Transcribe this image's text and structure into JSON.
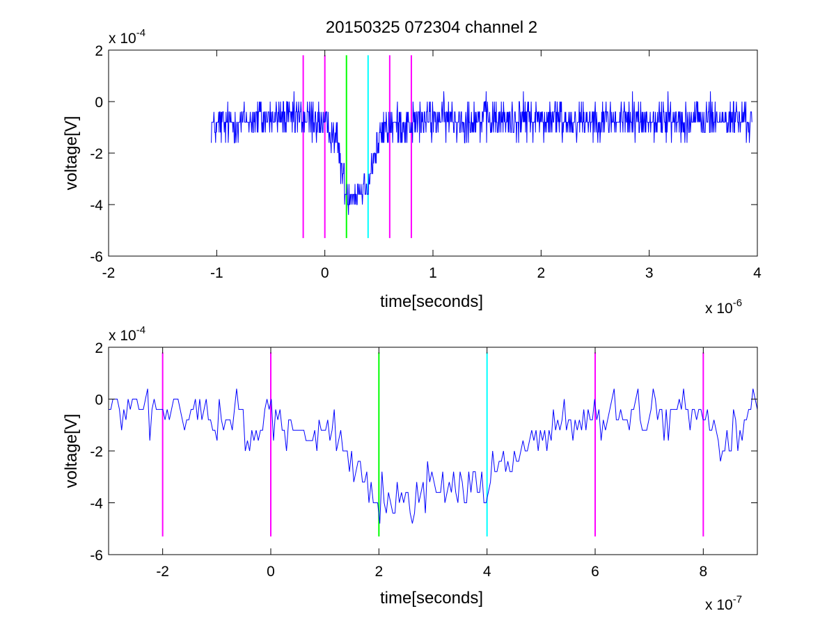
{
  "chart_data": [
    {
      "type": "line",
      "title": "20150325 072304 channel 2",
      "xlabel": "time[seconds]",
      "ylabel": "voltage[V]",
      "x_exponent_label": "x 10",
      "x_exponent": "-6",
      "y_exponent_label": "x 10",
      "y_exponent": "-4",
      "xlim": [
        -2e-06,
        4e-06
      ],
      "ylim": [
        -0.0006,
        0.0002
      ],
      "xticks": [
        -2e-06,
        -1e-06,
        0,
        1e-06,
        2e-06,
        3e-06,
        4e-06
      ],
      "xtick_labels": [
        "-2",
        "-1",
        "0",
        "1",
        "2",
        "3",
        "4"
      ],
      "yticks": [
        -0.0006,
        -0.0004,
        -0.0002,
        0,
        0.0002
      ],
      "ytick_labels": [
        "-6",
        "-4",
        "-2",
        "0",
        "2"
      ],
      "grid": false,
      "series": [
        {
          "color": "#0000ff",
          "x_start": -1.05e-06,
          "x_end": 3.95e-06,
          "n_points": 1250,
          "envelope": [
            {
              "x": -1.05e-06,
              "y": -0.0001
            },
            {
              "x": -5e-07,
              "y": -6e-05
            },
            {
              "x": -1e-07,
              "y": -7e-05
            },
            {
              "x": 0.0,
              "y": -9e-05
            },
            {
              "x": 1e-07,
              "y": -0.00013
            },
            {
              "x": 1.4e-07,
              "y": -0.00022
            },
            {
              "x": 2e-07,
              "y": -0.00036
            },
            {
              "x": 3e-07,
              "y": -0.00035
            },
            {
              "x": 4e-07,
              "y": -0.00031
            },
            {
              "x": 4.6e-07,
              "y": -0.0002
            },
            {
              "x": 5.5e-07,
              "y": -0.0001
            },
            {
              "x": 1e-06,
              "y": -7e-05
            },
            {
              "x": 2e-06,
              "y": -7e-05
            },
            {
              "x": 3e-06,
              "y": -7e-05
            },
            {
              "x": 3.95e-06,
              "y": -7e-05
            }
          ],
          "noise_amplitude": 8e-05,
          "y_quantum": 4e-05
        }
      ],
      "markers": [
        {
          "x": -2e-07,
          "color": "#ff00ff",
          "y_from": -0.00053,
          "y_to": 0.00018
        },
        {
          "x": 0.0,
          "color": "#ff00ff",
          "y_from": -0.00053,
          "y_to": 0.00018
        },
        {
          "x": 2e-07,
          "color": "#00ff00",
          "y_from": -0.00053,
          "y_to": 0.00018
        },
        {
          "x": 4e-07,
          "color": "#00ffff",
          "y_from": -0.00053,
          "y_to": 0.00018
        },
        {
          "x": 6e-07,
          "color": "#ff00ff",
          "y_from": -0.00053,
          "y_to": 0.00018
        },
        {
          "x": 8e-07,
          "color": "#ff00ff",
          "y_from": -0.00053,
          "y_to": 0.00018
        }
      ]
    },
    {
      "type": "line",
      "title": "",
      "xlabel": "time[seconds]",
      "ylabel": "voltage[V]",
      "x_exponent_label": "x 10",
      "x_exponent": "-7",
      "y_exponent_label": "x 10",
      "y_exponent": "-4",
      "xlim": [
        -3e-07,
        9e-07
      ],
      "ylim": [
        -0.0006,
        0.0002
      ],
      "xticks": [
        -2e-07,
        0,
        2e-07,
        4e-07,
        6e-07,
        8e-07
      ],
      "xtick_labels": [
        "-2",
        "0",
        "2",
        "4",
        "6",
        "8"
      ],
      "yticks": [
        -0.0006,
        -0.0004,
        -0.0002,
        0,
        0.0002
      ],
      "ytick_labels": [
        "-6",
        "-4",
        "-2",
        "0",
        "2"
      ],
      "grid": false,
      "series": [
        {
          "color": "#0000ff",
          "x_start": -3e-07,
          "x_end": 9e-07,
          "n_points": 300,
          "envelope": [
            {
              "x": -3e-07,
              "y": -4e-05
            },
            {
              "x": -6e-08,
              "y": -6e-05
            },
            {
              "x": -4e-08,
              "y": -0.00016
            },
            {
              "x": 0.0,
              "y": -6e-05
            },
            {
              "x": 6e-08,
              "y": -0.00012
            },
            {
              "x": 1.2e-07,
              "y": -0.00014
            },
            {
              "x": 1.5e-07,
              "y": -0.0003
            },
            {
              "x": 1.8e-07,
              "y": -0.00039
            },
            {
              "x": 2.2e-07,
              "y": -0.00037
            },
            {
              "x": 2.8e-07,
              "y": -0.00036
            },
            {
              "x": 3.4e-07,
              "y": -0.00033
            },
            {
              "x": 4e-07,
              "y": -0.00033
            },
            {
              "x": 4.4e-07,
              "y": -0.00023
            },
            {
              "x": 5e-07,
              "y": -0.00013
            },
            {
              "x": 6e-07,
              "y": -8e-05
            },
            {
              "x": 7e-07,
              "y": -5e-05
            },
            {
              "x": 8e-07,
              "y": -6e-05
            },
            {
              "x": 8.4e-07,
              "y": -0.00016
            },
            {
              "x": 9e-07,
              "y": -4e-05
            }
          ],
          "noise_amplitude": 9e-05,
          "y_quantum": 4e-05
        }
      ],
      "markers": [
        {
          "x": -2e-07,
          "color": "#ff00ff",
          "y_from": -0.00053,
          "y_to": 0.00018
        },
        {
          "x": 0.0,
          "color": "#ff00ff",
          "y_from": -0.00053,
          "y_to": 0.00018
        },
        {
          "x": 2e-07,
          "color": "#00ff00",
          "y_from": -0.00053,
          "y_to": 0.00018
        },
        {
          "x": 4e-07,
          "color": "#00ffff",
          "y_from": -0.00053,
          "y_to": 0.00018
        },
        {
          "x": 6e-07,
          "color": "#ff00ff",
          "y_from": -0.00053,
          "y_to": 0.00018
        },
        {
          "x": 8e-07,
          "color": "#ff00ff",
          "y_from": -0.00053,
          "y_to": 0.00018
        }
      ]
    }
  ]
}
